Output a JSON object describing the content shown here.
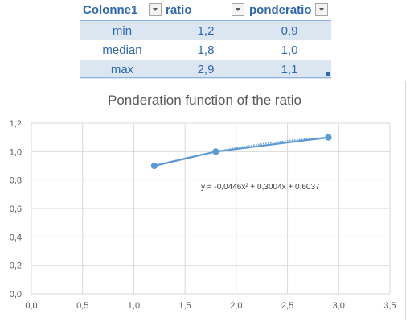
{
  "table": {
    "headers": [
      "Colonne1",
      "ratio",
      "ponderatio"
    ],
    "rows": [
      [
        "min",
        "1,2",
        "0,9"
      ],
      [
        "median",
        "1,8",
        "1,0"
      ],
      [
        "max",
        "2,9",
        "1,1"
      ]
    ],
    "header_color": "#2e68b0",
    "band_color": "#dce6f1"
  },
  "chart_data": {
    "type": "scatter",
    "title": "Ponderation function of the ratio",
    "x": [
      1.2,
      1.8,
      2.9
    ],
    "y": [
      0.9,
      1.0,
      1.1
    ],
    "xlim": [
      0,
      3.5
    ],
    "ylim": [
      0,
      1.2
    ],
    "xticks": [
      "0,0",
      "0,5",
      "1,0",
      "1,5",
      "2,0",
      "2,5",
      "3,0",
      "3,5"
    ],
    "yticks": [
      "0,0",
      "0,2",
      "0,4",
      "0,6",
      "0,8",
      "1,0",
      "1,2"
    ],
    "grid": true,
    "series_color": "#5b9bd5",
    "trendline": {
      "type": "polynomial-2",
      "coefficients": [
        -0.0446,
        0.3004,
        0.6037
      ],
      "equation_label": "y = -0,0446x² + 0,3004x + 0,6037"
    }
  }
}
